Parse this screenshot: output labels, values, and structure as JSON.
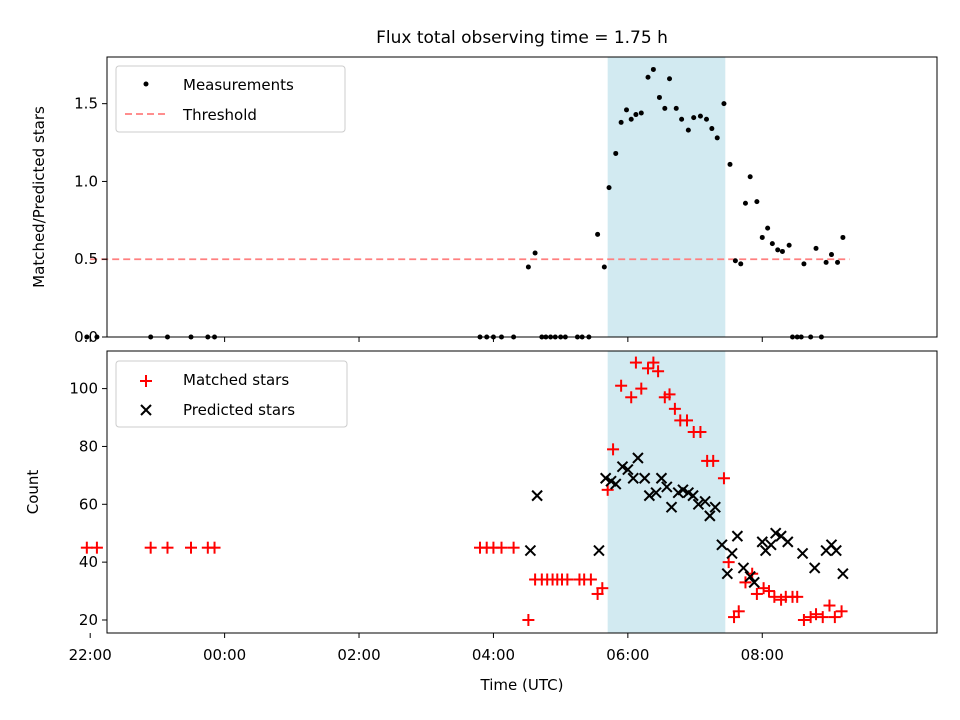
{
  "title": "Flux total observing time = 1.75 h",
  "colors": {
    "shade": "#add8e6",
    "threshold": "#ff7f7f",
    "measurement": "#000000",
    "matched": "#ff0000",
    "predicted": "#000000"
  },
  "chart_data": [
    {
      "type": "scatter",
      "ylabel": "Matched/Predicted stars",
      "xlim": [
        -1.75,
        10.6
      ],
      "ylim": [
        0,
        1.8
      ],
      "yticks": [
        0.0,
        0.5,
        1.0,
        1.5
      ],
      "ytick_labels": [
        "0.0",
        "0.5",
        "1.0",
        "1.5"
      ],
      "shaded_span": [
        5.7,
        7.45
      ],
      "legend": {
        "position": "upper-left",
        "entries": [
          "Measurements",
          "Threshold"
        ]
      },
      "threshold": {
        "name": "Threshold",
        "y": 0.5,
        "x": [
          -2.0,
          9.3
        ]
      },
      "series": [
        {
          "name": "Measurements",
          "marker": "dot",
          "points": [
            [
              -2.05,
              0
            ],
            [
              -1.9,
              0
            ],
            [
              -1.1,
              0
            ],
            [
              -0.85,
              0
            ],
            [
              -0.5,
              0
            ],
            [
              -0.25,
              0
            ],
            [
              -0.15,
              0
            ],
            [
              3.8,
              0
            ],
            [
              3.9,
              0
            ],
            [
              4.0,
              0
            ],
            [
              4.12,
              0
            ],
            [
              4.3,
              0
            ],
            [
              4.52,
              0.45
            ],
            [
              4.62,
              0.54
            ],
            [
              4.72,
              0
            ],
            [
              4.78,
              0
            ],
            [
              4.85,
              0
            ],
            [
              4.92,
              0
            ],
            [
              5.0,
              0
            ],
            [
              5.07,
              0
            ],
            [
              5.25,
              0
            ],
            [
              5.32,
              0
            ],
            [
              5.42,
              0
            ],
            [
              5.55,
              0.66
            ],
            [
              5.65,
              0.45
            ],
            [
              5.72,
              0.96
            ],
            [
              5.82,
              1.18
            ],
            [
              5.9,
              1.38
            ],
            [
              5.98,
              1.46
            ],
            [
              6.05,
              1.4
            ],
            [
              6.12,
              1.43
            ],
            [
              6.2,
              1.44
            ],
            [
              6.3,
              1.67
            ],
            [
              6.38,
              1.72
            ],
            [
              6.47,
              1.54
            ],
            [
              6.55,
              1.47
            ],
            [
              6.62,
              1.66
            ],
            [
              6.72,
              1.47
            ],
            [
              6.8,
              1.4
            ],
            [
              6.9,
              1.33
            ],
            [
              6.98,
              1.41
            ],
            [
              7.08,
              1.42
            ],
            [
              7.17,
              1.4
            ],
            [
              7.25,
              1.34
            ],
            [
              7.33,
              1.28
            ],
            [
              7.43,
              1.5
            ],
            [
              7.52,
              1.11
            ],
            [
              7.6,
              0.49
            ],
            [
              7.68,
              0.47
            ],
            [
              7.75,
              0.86
            ],
            [
              7.82,
              1.03
            ],
            [
              7.92,
              0.87
            ],
            [
              8.0,
              0.64
            ],
            [
              8.08,
              0.7
            ],
            [
              8.15,
              0.6
            ],
            [
              8.23,
              0.56
            ],
            [
              8.3,
              0.55
            ],
            [
              8.4,
              0.59
            ],
            [
              8.45,
              0
            ],
            [
              8.52,
              0
            ],
            [
              8.58,
              0
            ],
            [
              8.62,
              0.47
            ],
            [
              8.72,
              0
            ],
            [
              8.8,
              0.57
            ],
            [
              8.88,
              0
            ],
            [
              8.95,
              0.48
            ],
            [
              9.03,
              0.53
            ],
            [
              9.12,
              0.48
            ],
            [
              9.2,
              0.64
            ]
          ]
        }
      ]
    },
    {
      "type": "scatter",
      "xlabel": "Time (UTC)",
      "ylabel": "Count",
      "xlim": [
        -1.75,
        10.6
      ],
      "ylim": [
        15.5,
        113
      ],
      "xticks": [
        -2,
        0,
        2,
        4,
        6,
        8
      ],
      "xtick_labels": [
        "22:00",
        "00:00",
        "02:00",
        "04:00",
        "06:00",
        "08:00"
      ],
      "yticks": [
        20,
        40,
        60,
        80,
        100
      ],
      "ytick_labels": [
        "20",
        "40",
        "60",
        "80",
        "100"
      ],
      "shaded_span": [
        5.7,
        7.45
      ],
      "legend": {
        "position": "upper-left",
        "entries": [
          "Matched stars",
          "Predicted stars"
        ]
      },
      "series": [
        {
          "name": "Matched stars",
          "marker": "plus",
          "points": [
            [
              -2.05,
              45
            ],
            [
              -1.9,
              45
            ],
            [
              -1.1,
              45
            ],
            [
              -0.85,
              45
            ],
            [
              -0.5,
              45
            ],
            [
              -0.25,
              45
            ],
            [
              -0.15,
              45
            ],
            [
              3.8,
              45
            ],
            [
              3.9,
              45
            ],
            [
              4.0,
              45
            ],
            [
              4.12,
              45
            ],
            [
              4.3,
              45
            ],
            [
              4.52,
              20
            ],
            [
              4.62,
              34
            ],
            [
              4.72,
              34
            ],
            [
              4.8,
              34
            ],
            [
              4.88,
              34
            ],
            [
              4.95,
              34
            ],
            [
              5.02,
              34
            ],
            [
              5.1,
              34
            ],
            [
              5.28,
              34
            ],
            [
              5.35,
              34
            ],
            [
              5.45,
              34
            ],
            [
              5.55,
              29
            ],
            [
              5.62,
              31
            ],
            [
              5.7,
              65
            ],
            [
              5.78,
              79
            ],
            [
              5.9,
              101
            ],
            [
              6.05,
              97
            ],
            [
              6.12,
              109
            ],
            [
              6.2,
              100
            ],
            [
              6.3,
              107
            ],
            [
              6.38,
              109
            ],
            [
              6.45,
              106
            ],
            [
              6.55,
              97
            ],
            [
              6.62,
              98
            ],
            [
              6.7,
              93
            ],
            [
              6.78,
              89
            ],
            [
              6.88,
              89
            ],
            [
              6.98,
              85
            ],
            [
              7.08,
              85
            ],
            [
              7.18,
              75
            ],
            [
              7.27,
              75
            ],
            [
              7.43,
              69
            ],
            [
              7.5,
              40
            ],
            [
              7.58,
              21
            ],
            [
              7.65,
              23
            ],
            [
              7.75,
              33
            ],
            [
              7.85,
              36
            ],
            [
              7.92,
              29
            ],
            [
              8.02,
              31
            ],
            [
              8.1,
              30
            ],
            [
              8.18,
              28
            ],
            [
              8.28,
              27
            ],
            [
              8.35,
              28
            ],
            [
              8.45,
              28
            ],
            [
              8.52,
              28
            ],
            [
              8.62,
              20
            ],
            [
              8.72,
              21
            ],
            [
              8.8,
              22
            ],
            [
              8.9,
              21
            ],
            [
              9.0,
              25
            ],
            [
              9.08,
              21
            ],
            [
              9.18,
              23
            ]
          ]
        },
        {
          "name": "Predicted stars",
          "marker": "x",
          "points": [
            [
              4.55,
              44
            ],
            [
              4.65,
              63
            ],
            [
              5.57,
              44
            ],
            [
              5.67,
              69
            ],
            [
              5.75,
              68
            ],
            [
              5.82,
              67
            ],
            [
              5.92,
              73
            ],
            [
              6.0,
              72
            ],
            [
              6.08,
              69
            ],
            [
              6.15,
              76
            ],
            [
              6.25,
              69
            ],
            [
              6.32,
              63
            ],
            [
              6.42,
              64
            ],
            [
              6.5,
              69
            ],
            [
              6.58,
              66
            ],
            [
              6.65,
              59
            ],
            [
              6.75,
              64
            ],
            [
              6.82,
              65
            ],
            [
              6.9,
              64
            ],
            [
              6.97,
              63
            ],
            [
              7.05,
              60
            ],
            [
              7.15,
              61
            ],
            [
              7.22,
              56
            ],
            [
              7.3,
              59
            ],
            [
              7.4,
              46
            ],
            [
              7.48,
              36
            ],
            [
              7.55,
              43
            ],
            [
              7.63,
              49
            ],
            [
              7.72,
              38
            ],
            [
              7.82,
              35
            ],
            [
              7.88,
              33
            ],
            [
              8.0,
              47
            ],
            [
              8.05,
              44
            ],
            [
              8.13,
              46
            ],
            [
              8.2,
              50
            ],
            [
              8.28,
              49
            ],
            [
              8.38,
              47
            ],
            [
              8.6,
              43
            ],
            [
              8.78,
              38
            ],
            [
              8.95,
              44
            ],
            [
              9.03,
              46
            ],
            [
              9.1,
              44
            ],
            [
              9.2,
              36
            ]
          ]
        }
      ]
    }
  ]
}
